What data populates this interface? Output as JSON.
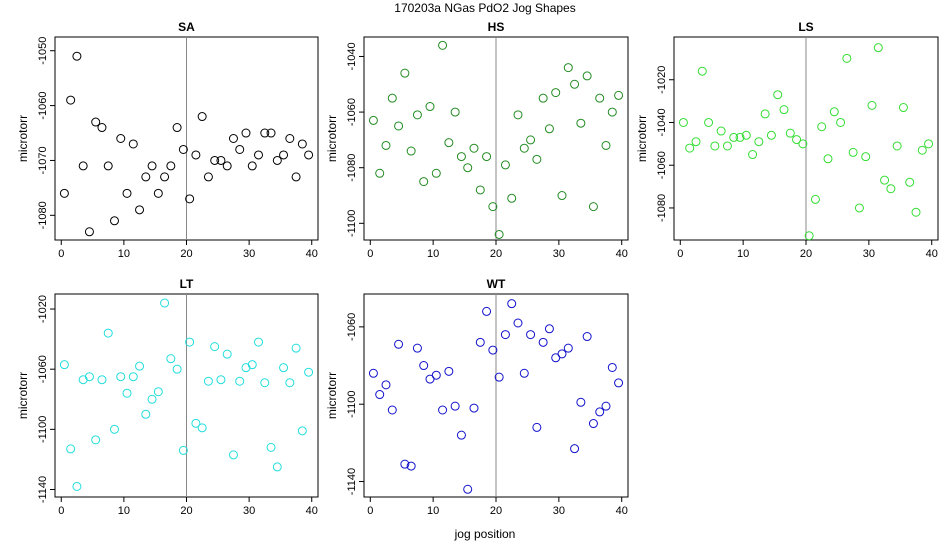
{
  "figure": {
    "title": "170203a   NGas PdO2 Jog Shapes",
    "xlabel": "jog position"
  },
  "chart_data": [
    {
      "type": "scatter",
      "title": "SA",
      "ylabel": "microtorr",
      "xlim": [
        -1,
        41
      ],
      "ylim": [
        -1084.5,
        -1047.5
      ],
      "xticks": [
        0,
        10,
        20,
        30,
        40
      ],
      "yticks": [
        -1080,
        -1070,
        -1060,
        -1050
      ],
      "vline": 20,
      "color": "#000000",
      "x": [
        0.5,
        1.5,
        2.5,
        3.5,
        4.5,
        5.5,
        6.5,
        7.5,
        8.5,
        9.5,
        10.5,
        11.5,
        12.5,
        13.5,
        14.5,
        15.5,
        16.5,
        17.5,
        18.5,
        19.5,
        20.5,
        21.5,
        22.5,
        23.5,
        24.5,
        25.5,
        26.5,
        27.5,
        28.5,
        29.5,
        30.5,
        31.5,
        32.5,
        33.5,
        34.5,
        35.5,
        36.5,
        37.5,
        38.5,
        39.5
      ],
      "y": [
        -1076,
        -1059,
        -1051,
        -1071,
        -1083,
        -1063,
        -1064,
        -1071,
        -1081,
        -1066,
        -1076,
        -1067,
        -1079,
        -1073,
        -1071,
        -1076,
        -1073,
        -1071,
        -1064,
        -1068,
        -1077,
        -1069,
        -1062,
        -1073,
        -1070,
        -1070,
        -1071,
        -1066,
        -1068,
        -1065,
        -1071,
        -1069,
        -1065,
        -1065,
        -1070,
        -1069,
        -1066,
        -1073,
        -1067,
        -1069
      ]
    },
    {
      "type": "scatter",
      "title": "HS",
      "ylabel": "microtorr",
      "xlim": [
        -1,
        41
      ],
      "ylim": [
        -1106,
        -1033
      ],
      "xticks": [
        0,
        10,
        20,
        30,
        40
      ],
      "yticks": [
        -1100,
        -1080,
        -1060,
        -1040
      ],
      "vline": 20,
      "color": "#228B22",
      "x": [
        0.5,
        1.5,
        2.5,
        3.5,
        4.5,
        5.5,
        6.5,
        7.5,
        8.5,
        9.5,
        10.5,
        11.5,
        12.5,
        13.5,
        14.5,
        15.5,
        16.5,
        17.5,
        18.5,
        19.5,
        20.5,
        21.5,
        22.5,
        23.5,
        24.5,
        25.5,
        26.5,
        27.5,
        28.5,
        29.5,
        30.5,
        31.5,
        32.5,
        33.5,
        34.5,
        35.5,
        36.5,
        37.5,
        38.5,
        39.5
      ],
      "y": [
        -1063,
        -1082,
        -1072,
        -1055,
        -1065,
        -1046,
        -1074,
        -1061,
        -1085,
        -1058,
        -1082,
        -1036,
        -1071,
        -1060,
        -1076,
        -1080,
        -1073,
        -1088,
        -1076,
        -1094,
        -1104,
        -1079,
        -1091,
        -1061,
        -1073,
        -1070,
        -1077,
        -1055,
        -1066,
        -1053,
        -1090,
        -1044,
        -1050,
        -1064,
        -1047,
        -1094,
        -1055,
        -1072,
        -1060,
        -1054
      ]
    },
    {
      "type": "scatter",
      "title": "LS",
      "ylabel": "microtorr",
      "xlim": [
        -1,
        41
      ],
      "ylim": [
        -1095,
        -1000
      ],
      "xticks": [
        0,
        10,
        20,
        30,
        40
      ],
      "yticks": [
        -1080,
        -1060,
        -1040,
        -1020
      ],
      "vline": 20,
      "color": "#33DD33",
      "x": [
        0.5,
        1.5,
        2.5,
        3.5,
        4.5,
        5.5,
        6.5,
        7.5,
        8.5,
        9.5,
        10.5,
        11.5,
        12.5,
        13.5,
        14.5,
        15.5,
        16.5,
        17.5,
        18.5,
        19.5,
        20.5,
        21.5,
        22.5,
        23.5,
        24.5,
        25.5,
        26.5,
        27.5,
        28.5,
        29.5,
        30.5,
        31.5,
        32.5,
        33.5,
        34.5,
        35.5,
        36.5,
        37.5,
        38.5,
        39.5
      ],
      "y": [
        -1040,
        -1052,
        -1049,
        -1016,
        -1040,
        -1051,
        -1044,
        -1051,
        -1047,
        -1047,
        -1046,
        -1055,
        -1049,
        -1036,
        -1046,
        -1027,
        -1034,
        -1045,
        -1048,
        -1050,
        -1093,
        -1076,
        -1042,
        -1057,
        -1035,
        -1040,
        -1010,
        -1054,
        -1080,
        -1056,
        -1032,
        -1005,
        -1067,
        -1071,
        -1051,
        -1033,
        -1068,
        -1082,
        -1053,
        -1050
      ]
    },
    {
      "type": "scatter",
      "title": "LT",
      "ylabel": "microtorr",
      "xlim": [
        -1,
        41
      ],
      "ylim": [
        -1145,
        -1010
      ],
      "xticks": [
        0,
        10,
        20,
        30,
        40
      ],
      "yticks": [
        -1140,
        -1100,
        -1060,
        -1020
      ],
      "vline": 20,
      "color": "#22DDDD",
      "x": [
        0.5,
        1.5,
        2.5,
        3.5,
        4.5,
        5.5,
        6.5,
        7.5,
        8.5,
        9.5,
        10.5,
        11.5,
        12.5,
        13.5,
        14.5,
        15.5,
        16.5,
        17.5,
        18.5,
        19.5,
        20.5,
        21.5,
        22.5,
        23.5,
        24.5,
        25.5,
        26.5,
        27.5,
        28.5,
        29.5,
        30.5,
        31.5,
        32.5,
        33.5,
        34.5,
        35.5,
        36.5,
        37.5,
        38.5,
        39.5
      ],
      "y": [
        -1057,
        -1113,
        -1138,
        -1067,
        -1065,
        -1107,
        -1067,
        -1036,
        -1100,
        -1065,
        -1076,
        -1065,
        -1058,
        -1090,
        -1080,
        -1075,
        -1016,
        -1053,
        -1060,
        -1114,
        -1042,
        -1096,
        -1099,
        -1068,
        -1045,
        -1067,
        -1050,
        -1117,
        -1068,
        -1059,
        -1057,
        -1042,
        -1069,
        -1112,
        -1125,
        -1059,
        -1069,
        -1046,
        -1101,
        -1062
      ]
    },
    {
      "type": "scatter",
      "title": "WT",
      "ylabel": "microtorr",
      "xlim": [
        -1,
        41
      ],
      "ylim": [
        -1148,
        -1043
      ],
      "xticks": [
        0,
        10,
        20,
        30,
        40
      ],
      "yticks": [
        -1140,
        -1100,
        -1060
      ],
      "vline": 20,
      "color": "#1111CC",
      "x": [
        0.5,
        1.5,
        2.5,
        3.5,
        4.5,
        5.5,
        6.5,
        7.5,
        8.5,
        9.5,
        10.5,
        11.5,
        12.5,
        13.5,
        14.5,
        15.5,
        16.5,
        17.5,
        18.5,
        19.5,
        20.5,
        21.5,
        22.5,
        23.5,
        24.5,
        25.5,
        26.5,
        27.5,
        28.5,
        29.5,
        30.5,
        31.5,
        32.5,
        33.5,
        34.5,
        35.5,
        36.5,
        37.5,
        38.5,
        39.5
      ],
      "y": [
        -1084,
        -1095,
        -1090,
        -1103,
        -1069,
        -1131,
        -1132,
        -1071,
        -1080,
        -1087,
        -1085,
        -1103,
        -1083,
        -1101,
        -1116,
        -1144,
        -1102,
        -1068,
        -1052,
        -1072,
        -1086,
        -1064,
        -1048,
        -1058,
        -1084,
        -1064,
        -1112,
        -1068,
        -1061,
        -1076,
        -1074,
        -1071,
        -1123,
        -1099,
        -1065,
        -1110,
        -1104,
        -1101,
        -1081,
        -1089
      ]
    }
  ]
}
